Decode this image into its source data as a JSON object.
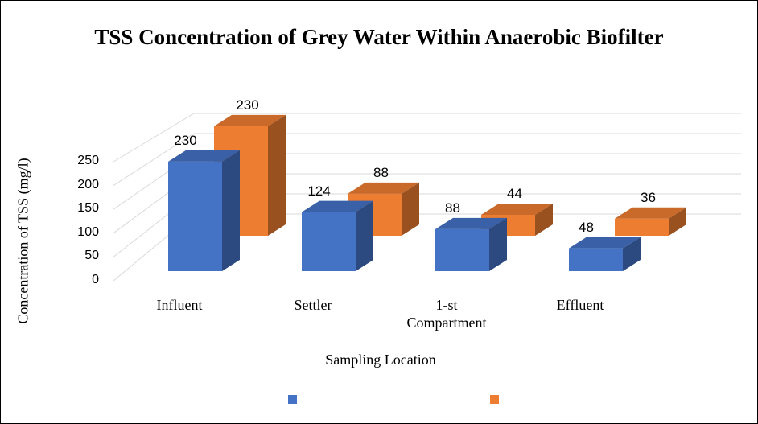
{
  "chart_data": {
    "type": "bar3d",
    "title": "TSS Concentration of Grey Water Within Anaerobic Biofilter",
    "y_label": "Concentration of TSS (mg/l)",
    "x_label": "Sampling Location",
    "categories": [
      "Influent",
      "Settler",
      "1-st Compartment",
      "Effluent"
    ],
    "series": [
      {
        "color": "#4472c4",
        "values": [
          230,
          124,
          88,
          48
        ]
      },
      {
        "color": "#ed7d31",
        "values": [
          230,
          88,
          44,
          36
        ]
      }
    ],
    "ylim": [
      0,
      250
    ],
    "yticks": [
      0,
      50,
      100,
      150,
      200,
      250
    ],
    "grid": true
  }
}
